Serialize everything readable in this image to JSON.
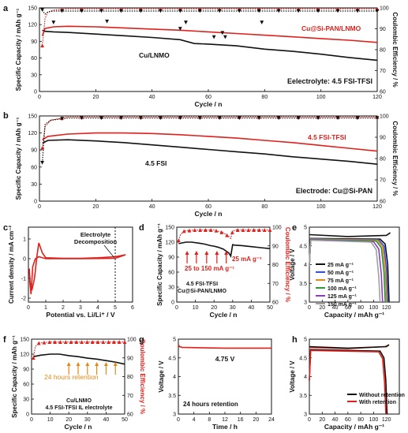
{
  "figure": {
    "panel_letters": [
      "a",
      "b",
      "c",
      "d",
      "e",
      "f",
      "g",
      "h"
    ]
  },
  "chart_data": [
    {
      "id": "a",
      "type": "line",
      "xlabel": "Cycle / n",
      "ylabel": "Specific Capacity / mAh g⁻¹",
      "y2label": "Coulombic Efficiency / %",
      "xlim": [
        0,
        120
      ],
      "ylim": [
        0,
        150
      ],
      "y2lim": [
        60,
        100
      ],
      "xticks": [
        0,
        20,
        40,
        60,
        80,
        100,
        120
      ],
      "yticks": [
        0,
        30,
        60,
        90,
        120,
        150
      ],
      "y2ticks": [
        60,
        70,
        80,
        90,
        100
      ],
      "annotation": "Eelectrolyte: 4.5 FSI-TFSI",
      "series": [
        {
          "name": "Cu@Si-PAN/LNMO",
          "color": "#e0201b",
          "axis": "left",
          "x": [
            1,
            2,
            5,
            10,
            20,
            30,
            40,
            50,
            60,
            70,
            80,
            90,
            100,
            110,
            120
          ],
          "values": [
            100,
            113,
            116,
            117,
            116,
            114,
            112,
            110,
            107,
            104,
            101,
            98,
            95,
            92,
            88
          ]
        },
        {
          "name": "Cu/LNMO",
          "color": "#111111",
          "axis": "left",
          "x": [
            1,
            2,
            5,
            10,
            20,
            30,
            40,
            50,
            55,
            60,
            70,
            80,
            90,
            100,
            110,
            120
          ],
          "values": [
            110,
            108,
            107,
            106,
            103,
            100,
            97,
            93,
            86,
            85,
            82,
            76,
            72,
            67,
            61,
            56
          ]
        },
        {
          "name": "",
          "color": "#e0201b",
          "axis": "right",
          "marker": "triangle",
          "x": [
            1,
            2,
            3,
            5,
            10,
            120
          ],
          "values": [
            82,
            95,
            98,
            99,
            99.5,
            99.5
          ]
        },
        {
          "name": "",
          "color": "#111111",
          "axis": "right",
          "marker": "triangle-down",
          "x": [
            1,
            2,
            3,
            5,
            10,
            30,
            60,
            90,
            120
          ],
          "values": [
            99,
            97,
            98,
            98.5,
            98.5,
            98.5,
            98.5,
            98.5,
            98.5
          ]
        },
        {
          "name": "",
          "color": "#111111",
          "axis": "right",
          "marker": "triangle-down",
          "points": true,
          "x": [
            5,
            24,
            50,
            52,
            62,
            65,
            66,
            79
          ],
          "values": [
            93,
            93.5,
            90,
            93,
            86,
            88,
            86,
            93
          ]
        }
      ]
    },
    {
      "id": "b",
      "type": "line",
      "xlabel": "Cycle / n",
      "ylabel": "Specific Capacity / mAh g⁻¹",
      "y2label": "Coulombic Efficiency / %",
      "xlim": [
        0,
        120
      ],
      "ylim": [
        0,
        150
      ],
      "y2lim": [
        60,
        100
      ],
      "xticks": [
        0,
        20,
        40,
        60,
        80,
        100,
        120
      ],
      "yticks": [
        0,
        30,
        60,
        90,
        120,
        150
      ],
      "y2ticks": [
        60,
        70,
        80,
        90,
        100
      ],
      "annotation": "Electrode: Cu@Si-PAN",
      "series": [
        {
          "name": "4.5 FSI-TFSI",
          "color": "#e0201b",
          "axis": "left",
          "x": [
            1,
            3,
            10,
            20,
            30,
            40,
            50,
            60,
            70,
            80,
            90,
            100,
            110,
            120
          ],
          "values": [
            108,
            114,
            118,
            120,
            120,
            119,
            117,
            114,
            111,
            107,
            103,
            98,
            93,
            88
          ]
        },
        {
          "name": "4.5 FSI",
          "color": "#111111",
          "axis": "left",
          "x": [
            1,
            3,
            10,
            20,
            30,
            40,
            50,
            60,
            70,
            80,
            90,
            100,
            110,
            120
          ],
          "values": [
            102,
            107,
            108,
            106,
            103,
            99,
            95,
            91,
            87,
            83,
            78,
            74,
            70,
            65
          ]
        },
        {
          "name": "",
          "color": "#e0201b",
          "axis": "right",
          "marker": "triangle",
          "x": [
            1,
            2,
            4,
            10,
            120
          ],
          "values": [
            85,
            95,
            98,
            99.5,
            99.5
          ]
        },
        {
          "name": "",
          "color": "#111111",
          "axis": "right",
          "marker": "triangle-down",
          "x": [
            1,
            2,
            4,
            10,
            120
          ],
          "values": [
            78,
            96,
            98,
            99,
            99
          ]
        }
      ]
    },
    {
      "id": "c",
      "type": "line",
      "xlabel": "Potential vs. Li/Li⁺ / V",
      "ylabel": "Current density / mA cm⁻²",
      "xlim": [
        0,
        6
      ],
      "ylim": [
        -2.2,
        1.6
      ],
      "xticks": [
        0,
        1,
        2,
        3,
        4,
        5,
        6
      ],
      "yticks": [
        -2,
        -1,
        0,
        1
      ],
      "annotation": "Electrolyte Decomposition",
      "marker_line_x": 5,
      "series": [
        {
          "name": "",
          "color": "#e0201b",
          "x": [
            0.05,
            0.1,
            0.2,
            0.35,
            0.5,
            0.6,
            0.8,
            1.0,
            2.0,
            3.0,
            4.0,
            5.0,
            5.6,
            5.0,
            3.0,
            1.0,
            0.6,
            0.4,
            0.25,
            0.15,
            0.08,
            0.05
          ],
          "values": [
            -0.5,
            -1.2,
            -1.6,
            -1.0,
            0.2,
            0.8,
            0.3,
            0.05,
            0.02,
            0.02,
            0.05,
            0.1,
            0.2,
            0.02,
            0.0,
            0.0,
            0.1,
            0.0,
            -0.4,
            -1.8,
            -1.2,
            -0.5
          ]
        }
      ]
    },
    {
      "id": "d",
      "type": "line",
      "xlabel": "Cycle / n",
      "ylabel": "Specific Capacity / mAh g⁻¹",
      "y2label": "Coulombic Efficiency / %",
      "xlim": [
        0,
        50
      ],
      "ylim": [
        0,
        150
      ],
      "y2lim": [
        60,
        100
      ],
      "xticks": [
        0,
        10,
        20,
        30,
        40,
        50
      ],
      "yticks": [
        0,
        30,
        60,
        90,
        120,
        150
      ],
      "y2ticks": [
        60,
        70,
        80,
        90,
        100
      ],
      "annotations": [
        "25 to 150 mA g⁻¹",
        "25 mA g⁻¹",
        "4.5 FSI-TFSI",
        "Cu@Si-PAN/LNMO"
      ],
      "series": [
        {
          "name": "",
          "color": "#111111",
          "axis": "left",
          "x": [
            1,
            5,
            8,
            12,
            15,
            18,
            20,
            22,
            25,
            28,
            29,
            30,
            31,
            35,
            40,
            45,
            50
          ],
          "values": [
            117,
            120,
            120,
            118,
            116,
            113,
            112,
            110,
            106,
            98,
            92,
            115,
            114,
            113,
            111,
            109,
            107
          ]
        },
        {
          "name": "",
          "color": "#e0201b",
          "axis": "right",
          "marker": "triangle",
          "x": [
            1,
            2,
            4,
            10,
            20,
            25,
            28,
            29,
            30,
            32,
            40,
            50
          ],
          "values": [
            93,
            96,
            98,
            98.5,
            98.5,
            97,
            95,
            94,
            98,
            98.5,
            98.5,
            98.5
          ]
        }
      ]
    },
    {
      "id": "e",
      "type": "line",
      "xlabel": "Capacity / mAh g⁻¹",
      "ylabel": "Voltage / V",
      "xlim": [
        0,
        140
      ],
      "ylim": [
        3.0,
        5.0
      ],
      "xticks": [
        0,
        20,
        40,
        60,
        80,
        100,
        120
      ],
      "yticks": [
        3.0,
        3.5,
        4.0,
        4.5,
        5.0
      ],
      "series": [
        {
          "name": "25 mA g⁻¹",
          "color": "#111111",
          "x": [
            0,
            2,
            110,
            118,
            122,
            124
          ],
          "values": [
            3.95,
            4.7,
            4.68,
            4.55,
            4.0,
            3.0
          ]
        },
        {
          "name": "50 mA g⁻¹",
          "color": "#3050e0",
          "x": [
            0,
            2,
            108,
            116,
            120,
            122
          ],
          "values": [
            3.95,
            4.69,
            4.66,
            4.5,
            3.9,
            3.0
          ]
        },
        {
          "name": "75 mA g⁻¹",
          "color": "#e08a1b",
          "x": [
            0,
            2,
            106,
            114,
            118,
            120
          ],
          "values": [
            3.95,
            4.68,
            4.65,
            4.48,
            3.85,
            3.0
          ]
        },
        {
          "name": "100 mA g⁻¹",
          "color": "#2a9a3a",
          "x": [
            0,
            2,
            104,
            112,
            116,
            118
          ],
          "values": [
            3.95,
            4.67,
            4.63,
            4.45,
            3.8,
            3.0
          ]
        },
        {
          "name": "125 mA g⁻¹",
          "color": "#8a3fc0",
          "x": [
            0,
            2,
            100,
            108,
            112,
            114
          ],
          "values": [
            3.95,
            4.66,
            4.61,
            4.42,
            3.75,
            3.0
          ]
        },
        {
          "name": "150 mA g⁻¹",
          "color": "#a0a0a0",
          "x": [
            0,
            2,
            96,
            104,
            108,
            110
          ],
          "values": [
            3.95,
            4.65,
            4.6,
            4.4,
            3.7,
            3.0
          ]
        },
        {
          "name": "",
          "color": "#111111",
          "x": [
            0,
            60,
            120,
            126
          ],
          "values": [
            4.8,
            4.75,
            4.78,
            4.85
          ]
        }
      ]
    },
    {
      "id": "f",
      "type": "line",
      "xlabel": "Cycle / n",
      "ylabel": "Specific Capacity / mAh g⁻¹",
      "y2label": "Coulombic Efficiency / %",
      "xlim": [
        0,
        50
      ],
      "ylim": [
        0,
        150
      ],
      "y2lim": [
        60,
        100
      ],
      "xticks": [
        0,
        10,
        20,
        30,
        40,
        50
      ],
      "yticks": [
        0,
        30,
        60,
        90,
        120,
        150
      ],
      "y2ticks": [
        60,
        70,
        80,
        90,
        100
      ],
      "annotations": [
        "24 hours retention",
        "Cu/LNMO",
        "4.5 FSI-TFSI IL electrolyte"
      ],
      "series": [
        {
          "name": "",
          "color": "#111111",
          "axis": "left",
          "x": [
            1,
            5,
            10,
            15,
            20,
            25,
            30,
            35,
            40,
            45,
            50
          ],
          "values": [
            115,
            118,
            120,
            120,
            117,
            115,
            112,
            110,
            107,
            104,
            100
          ]
        },
        {
          "name": "",
          "color": "#e0201b",
          "axis": "right",
          "marker": "triangle",
          "x": [
            1,
            2,
            4,
            10,
            20,
            30,
            40,
            50
          ],
          "values": [
            90,
            96,
            98,
            98.5,
            98.5,
            98.5,
            98.5,
            98.5
          ]
        }
      ]
    },
    {
      "id": "g",
      "type": "line",
      "xlabel": "Time / h",
      "ylabel": "Voltage / V",
      "xlim": [
        0,
        24
      ],
      "ylim": [
        3.0,
        5.0
      ],
      "xticks": [
        0,
        4,
        8,
        12,
        16,
        20,
        24
      ],
      "yticks": [
        3.0,
        3.5,
        4.0,
        4.5,
        5.0
      ],
      "annotations": [
        "4.75 V",
        "24 hours retention"
      ],
      "series": [
        {
          "name": "",
          "color": "#e0201b",
          "x": [
            0,
            0.3,
            1,
            6,
            12,
            18,
            24
          ],
          "values": [
            4.85,
            4.8,
            4.78,
            4.77,
            4.76,
            4.76,
            4.76
          ]
        }
      ]
    },
    {
      "id": "h",
      "type": "line",
      "xlabel": "Capacity / mAh g⁻¹",
      "ylabel": "Voltage / V",
      "xlim": [
        0,
        140
      ],
      "ylim": [
        3.0,
        5.0
      ],
      "xticks": [
        0,
        20,
        40,
        60,
        80,
        100,
        120
      ],
      "yticks": [
        3.0,
        3.5,
        4.0,
        4.5,
        5.0
      ],
      "series": [
        {
          "name": "Without retention",
          "color": "#111111",
          "x": [
            0,
            2,
            110,
            116,
            119,
            121
          ],
          "values": [
            3.9,
            4.72,
            4.68,
            4.5,
            3.9,
            3.0
          ]
        },
        {
          "name": "With retention",
          "color": "#e0201b",
          "x": [
            0,
            2,
            108,
            114,
            117,
            119
          ],
          "values": [
            3.9,
            4.7,
            4.66,
            4.48,
            3.85,
            3.0
          ]
        },
        {
          "name": "",
          "color": "#e0201b",
          "x": [
            0,
            60,
            118,
            124
          ],
          "values": [
            4.78,
            4.75,
            4.8,
            4.85
          ]
        },
        {
          "name": "",
          "color": "#111111",
          "x": [
            0,
            60,
            120,
            124
          ],
          "values": [
            4.8,
            4.76,
            4.8,
            4.85
          ]
        }
      ]
    }
  ]
}
